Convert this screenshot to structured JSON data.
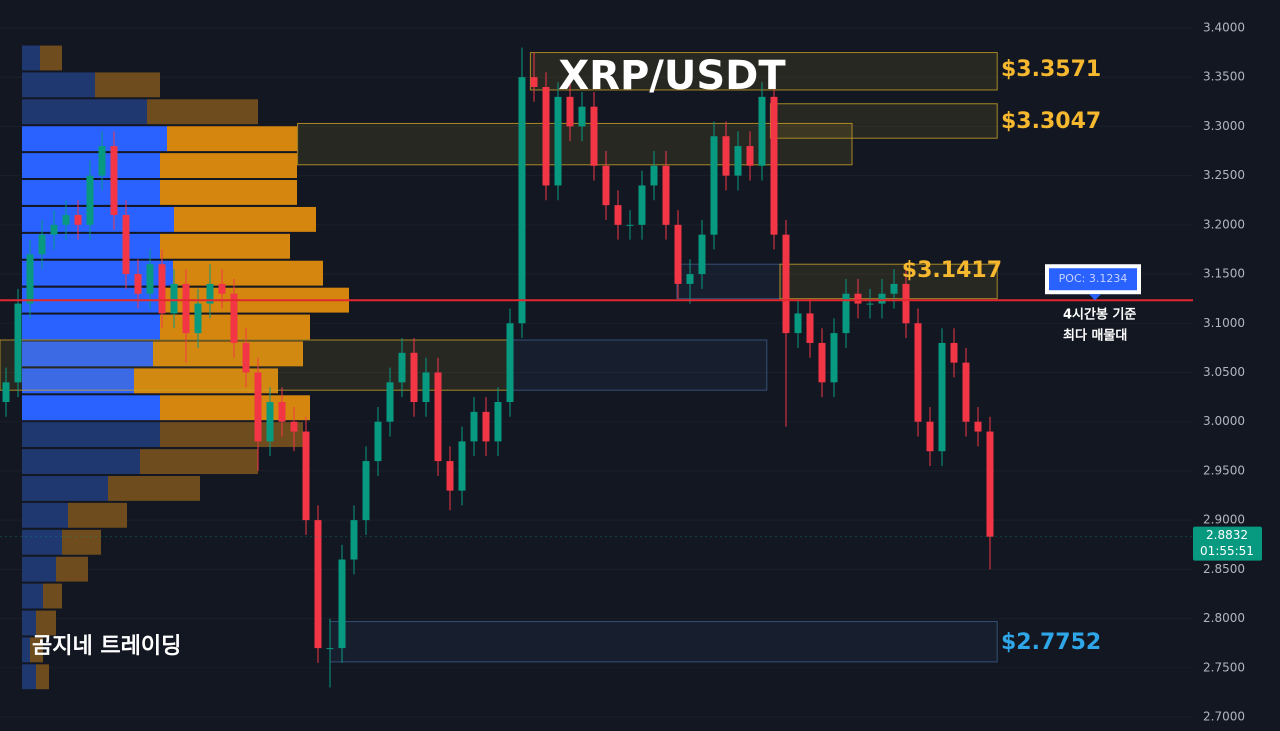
{
  "chart_data": {
    "type": "candlestick",
    "title": "XRP/USDT",
    "watermark": "곰지네 트레이딩",
    "up_color": "#089981",
    "down_color": "#f23645",
    "ylim": [
      2.6858,
      3.4284
    ],
    "yticks": [
      {
        "value": 2.7,
        "label": "2.7000"
      },
      {
        "value": 2.75,
        "label": "2.7500"
      },
      {
        "value": 2.8,
        "label": "2.8000"
      },
      {
        "value": 2.85,
        "label": "2.8500"
      },
      {
        "value": 2.9,
        "label": "2.9000"
      },
      {
        "value": 2.95,
        "label": "2.9500"
      },
      {
        "value": 3.0,
        "label": "3.0000"
      },
      {
        "value": 3.05,
        "label": "3.0500"
      },
      {
        "value": 3.1,
        "label": "3.1000"
      },
      {
        "value": 3.15,
        "label": "3.1500"
      },
      {
        "value": 3.2,
        "label": "3.2000"
      },
      {
        "value": 3.25,
        "label": "3.2500"
      },
      {
        "value": 3.3,
        "label": "3.3000"
      },
      {
        "value": 3.35,
        "label": "3.3500"
      },
      {
        "value": 3.4,
        "label": "3.4000"
      }
    ],
    "grid": true,
    "open": [
      3.02,
      3.04,
      3.12,
      3.17,
      3.19,
      3.2,
      3.21,
      3.2,
      3.25,
      3.28,
      3.21,
      3.15,
      3.13,
      3.16,
      3.11,
      3.14,
      3.09,
      3.12,
      3.14,
      3.13,
      3.08,
      3.05,
      2.98,
      3.02,
      3.0,
      2.99,
      2.9,
      2.77,
      2.77,
      2.86,
      2.9,
      2.96,
      3.0,
      3.04,
      3.07,
      3.02,
      3.05,
      2.96,
      2.93,
      2.98,
      3.01,
      2.98,
      3.02,
      3.1,
      3.35,
      3.34,
      3.24,
      3.33,
      3.3,
      3.32,
      3.26,
      3.22,
      3.2,
      3.2,
      3.24,
      3.26,
      3.2,
      3.14,
      3.15,
      3.19,
      3.29,
      3.25,
      3.28,
      3.26,
      3.33,
      3.19,
      3.09,
      3.11,
      3.08,
      3.04,
      3.09,
      3.13,
      3.12,
      3.12,
      3.13,
      3.14,
      3.1,
      3.0,
      2.97,
      3.08,
      3.06,
      3.0,
      2.99
    ],
    "high": [
      3.055,
      3.135,
      3.185,
      3.205,
      3.215,
      3.225,
      3.225,
      3.265,
      3.295,
      3.295,
      3.225,
      3.165,
      3.175,
      3.175,
      3.155,
      3.155,
      3.135,
      3.16,
      3.155,
      3.145,
      3.095,
      3.065,
      3.035,
      3.035,
      3.015,
      3.005,
      2.915,
      2.8,
      2.875,
      2.915,
      2.975,
      3.015,
      3.055,
      3.085,
      3.085,
      3.065,
      3.065,
      2.975,
      2.995,
      3.025,
      3.025,
      3.035,
      3.115,
      3.38,
      3.375,
      3.355,
      3.345,
      3.345,
      3.335,
      3.335,
      3.275,
      3.235,
      3.215,
      3.255,
      3.275,
      3.275,
      3.215,
      3.165,
      3.205,
      3.305,
      3.305,
      3.295,
      3.295,
      3.345,
      3.345,
      3.205,
      3.125,
      3.125,
      3.095,
      3.105,
      3.145,
      3.145,
      3.135,
      3.145,
      3.155,
      3.155,
      3.115,
      3.015,
      3.095,
      3.095,
      3.075,
      3.015,
      3.005
    ],
    "low": [
      3.005,
      3.025,
      3.105,
      3.155,
      3.175,
      3.185,
      3.185,
      3.185,
      3.235,
      3.195,
      3.135,
      3.115,
      3.115,
      3.095,
      3.095,
      3.06,
      3.075,
      3.105,
      3.115,
      3.065,
      3.035,
      2.95,
      2.965,
      2.985,
      2.97,
      2.885,
      2.755,
      2.73,
      2.755,
      2.845,
      2.885,
      2.945,
      2.985,
      3.025,
      3.005,
      3.005,
      2.945,
      2.91,
      2.915,
      2.965,
      2.965,
      2.965,
      3.005,
      3.085,
      3.325,
      3.225,
      3.225,
      3.285,
      3.285,
      3.245,
      3.205,
      3.185,
      3.185,
      3.185,
      3.225,
      3.185,
      3.125,
      3.12,
      3.135,
      3.175,
      3.235,
      3.235,
      3.245,
      3.245,
      3.175,
      2.995,
      3.075,
      3.065,
      3.025,
      3.025,
      3.075,
      3.105,
      3.105,
      3.105,
      3.115,
      3.085,
      2.985,
      2.955,
      2.955,
      3.045,
      2.985,
      2.975,
      2.85
    ],
    "close": [
      3.04,
      3.12,
      3.17,
      3.19,
      3.2,
      3.21,
      3.2,
      3.25,
      3.28,
      3.21,
      3.15,
      3.13,
      3.16,
      3.11,
      3.14,
      3.09,
      3.12,
      3.14,
      3.13,
      3.08,
      3.05,
      2.98,
      3.02,
      3.0,
      2.99,
      2.9,
      2.77,
      2.77,
      2.86,
      2.9,
      2.96,
      3.0,
      3.04,
      3.07,
      3.02,
      3.05,
      2.96,
      2.93,
      2.98,
      3.01,
      2.98,
      3.02,
      3.1,
      3.35,
      3.34,
      3.24,
      3.33,
      3.3,
      3.32,
      3.26,
      3.22,
      3.2,
      3.2,
      3.24,
      3.26,
      3.2,
      3.14,
      3.15,
      3.19,
      3.29,
      3.25,
      3.28,
      3.26,
      3.33,
      3.19,
      3.09,
      3.11,
      3.08,
      3.04,
      3.09,
      3.13,
      3.12,
      3.12,
      3.13,
      3.14,
      3.1,
      3.0,
      2.97,
      3.08,
      3.06,
      3.0,
      2.99,
      2.8832
    ],
    "volume_profile": {
      "levels": [
        3.3695,
        3.3422,
        3.3149,
        3.2875,
        3.2602,
        3.2329,
        3.2055,
        3.1782,
        3.1509,
        3.1235,
        3.0962,
        3.0689,
        3.0415,
        3.0142,
        2.9869,
        2.9595,
        2.9322,
        2.9049,
        2.8775,
        2.8502,
        2.8229,
        2.7955,
        2.7682,
        2.7409
      ],
      "buy": [
        18,
        73,
        125,
        145,
        138,
        138,
        152,
        138,
        151,
        143,
        138,
        131,
        112,
        138,
        138,
        118,
        86,
        46,
        40,
        34,
        21,
        14,
        8,
        14
      ],
      "sell": [
        22,
        65,
        111,
        130,
        137,
        137,
        142,
        130,
        150,
        184,
        150,
        150,
        144,
        150,
        143,
        118,
        92,
        59,
        39,
        32,
        19,
        20,
        13,
        13
      ],
      "value_area": {
        "low": 3.0,
        "high": 3.3
      },
      "buy_color": "#2962ff",
      "sell_color": "#d4860e",
      "buy_color_outside": "#1f3870",
      "sell_color_outside": "#6e4c1d"
    },
    "zones": [
      {
        "low": 3.337,
        "high": 3.375,
        "start": 43.7,
        "end": 82.6,
        "color": "#c9a227"
      },
      {
        "low": 3.288,
        "high": 3.323,
        "start": 63.7,
        "end": 82.6,
        "color": "#c9a227"
      },
      {
        "low": 3.261,
        "high": 3.303,
        "start": 24.3,
        "end": 70.5,
        "color": "#c9a227"
      },
      {
        "low": 3.125,
        "high": 3.16,
        "start": 55.9,
        "end": 64.5,
        "color": "#3d5c8a"
      },
      {
        "low": 3.125,
        "high": 3.16,
        "start": 64.5,
        "end": 82.6,
        "color": "#c9a227"
      },
      {
        "low": 3.032,
        "high": 3.083,
        "start": -0.5,
        "end": 42.2,
        "color": "#c9a227"
      },
      {
        "low": 3.032,
        "high": 3.083,
        "start": 42.2,
        "end": 63.4,
        "color": "#3d5c8a"
      },
      {
        "low": 2.756,
        "high": 2.797,
        "start": 27.0,
        "end": 82.6,
        "color": "#3d5c8a"
      }
    ],
    "levels": [
      {
        "value": 3.3571,
        "label": "$3.3571",
        "color": "#f5b82e",
        "placement": "right"
      },
      {
        "value": 3.3047,
        "label": "$3.3047",
        "color": "#f5b82e",
        "placement": "right"
      },
      {
        "value": 3.1417,
        "label": "$3.1417",
        "color": "#f5b82e",
        "placement": "above"
      },
      {
        "value": 2.7752,
        "label": "$2.7752",
        "color": "#2ea6e8",
        "placement": "right"
      }
    ],
    "poc": {
      "value": 3.1234,
      "label": "POC: 3.1234",
      "color": "#e0282e"
    },
    "annotation": [
      "4시간봉 기준",
      "최다 매물대"
    ],
    "last_price": 2.8832,
    "countdown": "01:55:51"
  }
}
